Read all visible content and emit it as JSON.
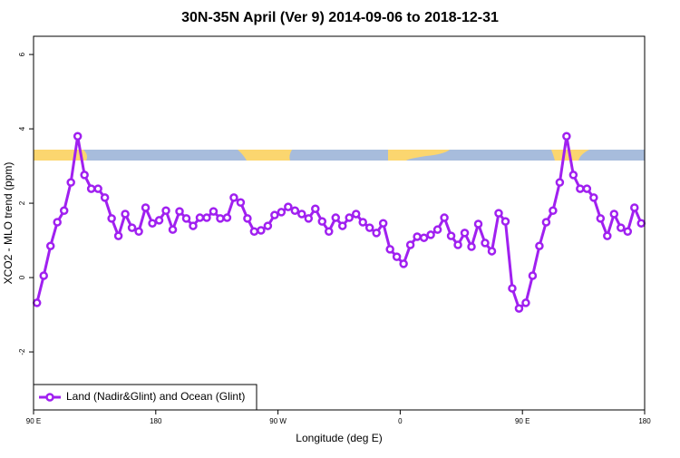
{
  "chart_data": {
    "type": "line",
    "title": "30N-35N April (Ver 9)   2014-09-06 to 2018-12-31",
    "x_label": "Longitude (deg E)",
    "y_label": "XCO2 - MLO trend (ppm)",
    "xlim": [
      90,
      540
    ],
    "ylim": [
      -3.56,
      6.49
    ],
    "xticks": [
      {
        "value": 90,
        "label": "90 E"
      },
      180,
      {
        "value": 270,
        "label": "90 W"
      },
      {
        "value": 360,
        "label": "0"
      },
      {
        "value": 450,
        "label": "90 E"
      },
      {
        "value": 540,
        "label": "180"
      }
    ],
    "yticks": [
      -2,
      0,
      2,
      4,
      6
    ],
    "legend": "bottom-left",
    "x": [
      92.5,
      97.5,
      102.5,
      107.5,
      112.5,
      117.5,
      122.5,
      127.5,
      132.5,
      137.5,
      142.5,
      147.5,
      152.5,
      157.5,
      162.5,
      167.5,
      172.5,
      177.5,
      182.5,
      187.5,
      192.5,
      197.5,
      202.5,
      207.5,
      212.5,
      217.5,
      222.5,
      227.5,
      232.5,
      237.5,
      242.5,
      247.5,
      252.5,
      257.5,
      262.5,
      267.5,
      272.5,
      277.5,
      282.5,
      287.5,
      292.5,
      297.5,
      302.5,
      307.5,
      312.5,
      317.5,
      322.5,
      327.5,
      332.5,
      337.5,
      342.5,
      347.5,
      352.5,
      357.5,
      362.5,
      367.5,
      372.5,
      377.5,
      382.5,
      387.5,
      392.5,
      397.5,
      402.5,
      407.5,
      412.5,
      417.5,
      422.5,
      427.5,
      432.5,
      437.5,
      442.5,
      447.5,
      452.5,
      457.5,
      462.5,
      467.5,
      472.5,
      477.5,
      482.5,
      487.5,
      492.5,
      497.5,
      502.5,
      507.5,
      512.5,
      517.5,
      522.5,
      527.5,
      532.5,
      537.5
    ],
    "series": [
      {
        "name": "Land (Nadir&Glint) and Ocean (Glint)",
        "color": "#a020f0",
        "values": [
          -0.68,
          0.05,
          0.85,
          1.49,
          1.8,
          2.56,
          3.8,
          2.76,
          2.39,
          2.39,
          2.15,
          1.59,
          1.12,
          1.71,
          1.34,
          1.24,
          1.88,
          1.46,
          1.54,
          1.8,
          1.29,
          1.78,
          1.59,
          1.39,
          1.61,
          1.61,
          1.78,
          1.59,
          1.61,
          2.15,
          2.02,
          1.59,
          1.24,
          1.27,
          1.39,
          1.68,
          1.76,
          1.9,
          1.8,
          1.71,
          1.59,
          1.85,
          1.51,
          1.24,
          1.61,
          1.39,
          1.61,
          1.71,
          1.49,
          1.34,
          1.2,
          1.46,
          0.76,
          0.56,
          0.37,
          0.88,
          1.1,
          1.07,
          1.15,
          1.29,
          1.61,
          1.12,
          0.88,
          1.2,
          0.83,
          1.44,
          0.93,
          0.71,
          1.73,
          1.51,
          -0.29,
          -0.83,
          -0.68,
          0.05,
          0.85,
          1.49,
          1.8,
          2.56,
          3.8,
          2.76,
          2.39,
          2.39,
          2.15,
          1.59,
          1.12,
          1.71,
          1.34,
          1.24,
          1.88,
          1.46
        ]
      }
    ]
  }
}
